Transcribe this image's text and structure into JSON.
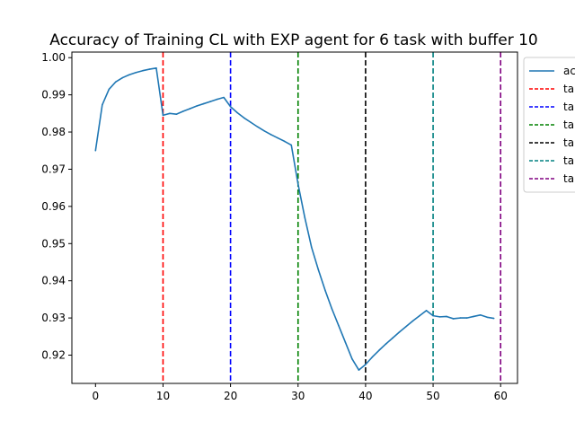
{
  "chart_data": {
    "type": "line",
    "title": "Accuracy of Training CL with EXP agent for 6 task with buffer 10",
    "xlabel": "",
    "ylabel": "",
    "xlim": [
      -3.5,
      62.5
    ],
    "ylim": [
      0.9124,
      1.0015
    ],
    "x_ticks": [
      0,
      10,
      20,
      30,
      40,
      50,
      60
    ],
    "y_ticks": [
      0.92,
      0.93,
      0.94,
      0.95,
      0.96,
      0.97,
      0.98,
      0.99,
      1.0
    ],
    "y_tick_labels": [
      "0.92",
      "0.93",
      "0.94",
      "0.95",
      "0.96",
      "0.97",
      "0.98",
      "0.99",
      "1.00"
    ],
    "grid": false,
    "legend_placement": "upper right, outside plot (clipped)",
    "series": [
      {
        "name": "ac",
        "color": "#1f77b4",
        "x": [
          0,
          1,
          2,
          3,
          4,
          5,
          6,
          7,
          8,
          9,
          10,
          11,
          12,
          13,
          14,
          15,
          16,
          17,
          18,
          19,
          20,
          21,
          22,
          23,
          24,
          25,
          26,
          27,
          28,
          29,
          30,
          31,
          32,
          33,
          34,
          35,
          36,
          37,
          38,
          39,
          40,
          41,
          42,
          43,
          44,
          45,
          46,
          47,
          48,
          49,
          50,
          51,
          52,
          53,
          54,
          55,
          56,
          57,
          58,
          59
        ],
        "y": [
          0.975,
          0.9873,
          0.9915,
          0.9935,
          0.9946,
          0.9954,
          0.996,
          0.9965,
          0.9969,
          0.9972,
          0.9845,
          0.985,
          0.9848,
          0.9856,
          0.9863,
          0.987,
          0.9876,
          0.9882,
          0.9888,
          0.9893,
          0.9868,
          0.9852,
          0.9838,
          0.9826,
          0.9814,
          0.9803,
          0.9793,
          0.9784,
          0.9775,
          0.9765,
          0.966,
          0.957,
          0.949,
          0.943,
          0.9375,
          0.9325,
          0.928,
          0.9235,
          0.919,
          0.916,
          0.9175,
          0.9195,
          0.9213,
          0.923,
          0.9246,
          0.9262,
          0.9277,
          0.9292,
          0.9306,
          0.932,
          0.9306,
          0.9303,
          0.9304,
          0.9298,
          0.93,
          0.93,
          0.9304,
          0.9308,
          0.9302,
          0.9299
        ]
      }
    ],
    "vlines": [
      {
        "x": 10,
        "color": "#ff0000",
        "name": "ta"
      },
      {
        "x": 20,
        "color": "#0000ff",
        "name": "ta"
      },
      {
        "x": 30,
        "color": "#008000",
        "name": "ta"
      },
      {
        "x": 40,
        "color": "#000000",
        "name": "ta"
      },
      {
        "x": 50,
        "color": "#008080",
        "name": "ta"
      },
      {
        "x": 60,
        "color": "#800080",
        "name": "ta"
      }
    ]
  }
}
